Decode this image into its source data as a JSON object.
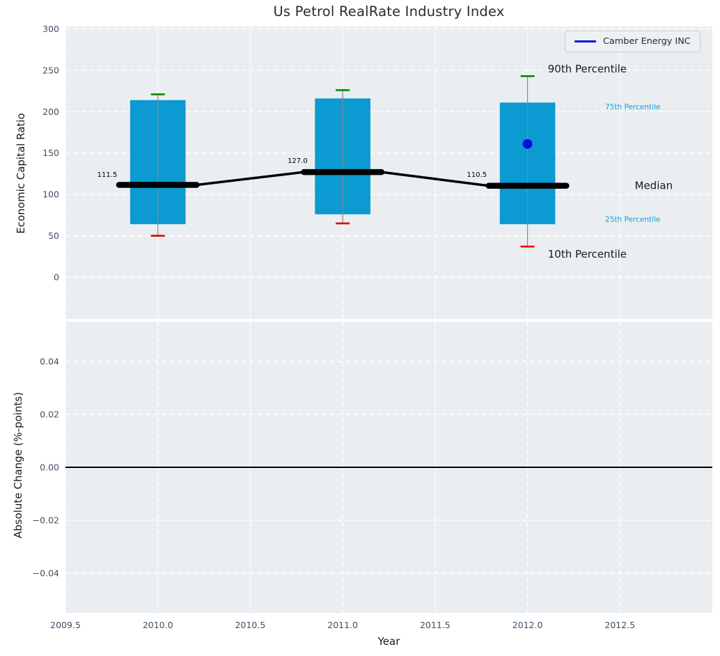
{
  "title": "Us Petrol RealRate Industry Index",
  "legend": {
    "label": "Camber Energy INC"
  },
  "colors": {
    "bar": "#0b9ad1",
    "p90_cap": "#008b00",
    "p10_cap": "#e60000",
    "median_line": "#000000",
    "company": "#0d0de0",
    "plot_bg": "#eaeef0",
    "grid": "#ffffff",
    "tick_text": "#3d4f63",
    "percentile_label": "#17a0da",
    "annotation_text": "#1a1a1a",
    "whisker": "#888888",
    "zero_line": "#000000"
  },
  "chart_data": {
    "type": "bar",
    "variant": "percentile_box_with_company_marker",
    "title": "Us Petrol RealRate Industry Index",
    "xlabel": "Year",
    "x": {
      "lim": [
        2009.5,
        2013.0
      ],
      "tick_values": [
        2009.5,
        2010.0,
        2010.5,
        2011.0,
        2011.5,
        2012.0,
        2012.5
      ],
      "ticks": [
        "2009.5",
        "2010.0",
        "2010.5",
        "2011.0",
        "2011.5",
        "2012.0",
        "2012.5"
      ]
    },
    "top_panel": {
      "ylabel": "Economic Capital Ratio",
      "ylim": [
        -50.5,
        303
      ],
      "yticks": [
        0,
        50,
        100,
        150,
        200,
        250,
        300
      ],
      "grid": true,
      "years": [
        2010,
        2011,
        2012
      ],
      "p10": [
        50,
        65,
        37
      ],
      "p25": [
        64,
        76,
        64
      ],
      "median": [
        111.5,
        127.0,
        110.5
      ],
      "p75": [
        214,
        216,
        211
      ],
      "p90": [
        221,
        226,
        243
      ],
      "median_value_labels": [
        {
          "text": "111.5",
          "year": 2009.78,
          "value": 124
        },
        {
          "text": "127.0",
          "year": 2010.81,
          "value": 141
        },
        {
          "text": "110.5",
          "year": 2011.78,
          "value": 124
        }
      ],
      "company_point": {
        "name": "Camber Energy INC",
        "year": 2012,
        "value": 161
      },
      "annotations": [
        {
          "text": "90th Percentile",
          "year": 2012.11,
          "value": 252,
          "size": 15,
          "color": "#1a1a1a"
        },
        {
          "text": "75th Percentile",
          "year": 2012.42,
          "value": 206,
          "size": 10.5,
          "color": "#17a0da"
        },
        {
          "text": "Median",
          "year": 2012.58,
          "value": 111,
          "size": 15,
          "color": "#1a1a1a"
        },
        {
          "text": "25th Percentile",
          "year": 2012.42,
          "value": 70,
          "size": 10.5,
          "color": "#17a0da"
        },
        {
          "text": "10th Percentile",
          "year": 2012.11,
          "value": 28,
          "size": 15,
          "color": "#1a1a1a"
        }
      ]
    },
    "bottom_panel": {
      "ylabel": "Absolute Change (%-points)",
      "ylim": [
        -0.055,
        0.055
      ],
      "grid": true,
      "yticks": [
        {
          "v": 0.04,
          "label": "0.04"
        },
        {
          "v": 0.02,
          "label": "0.02"
        },
        {
          "v": 0.0,
          "label": "0.00"
        },
        {
          "v": -0.02,
          "label": "−0.02"
        },
        {
          "v": -0.04,
          "label": "−0.04"
        }
      ],
      "zero_line": 0.0
    }
  }
}
